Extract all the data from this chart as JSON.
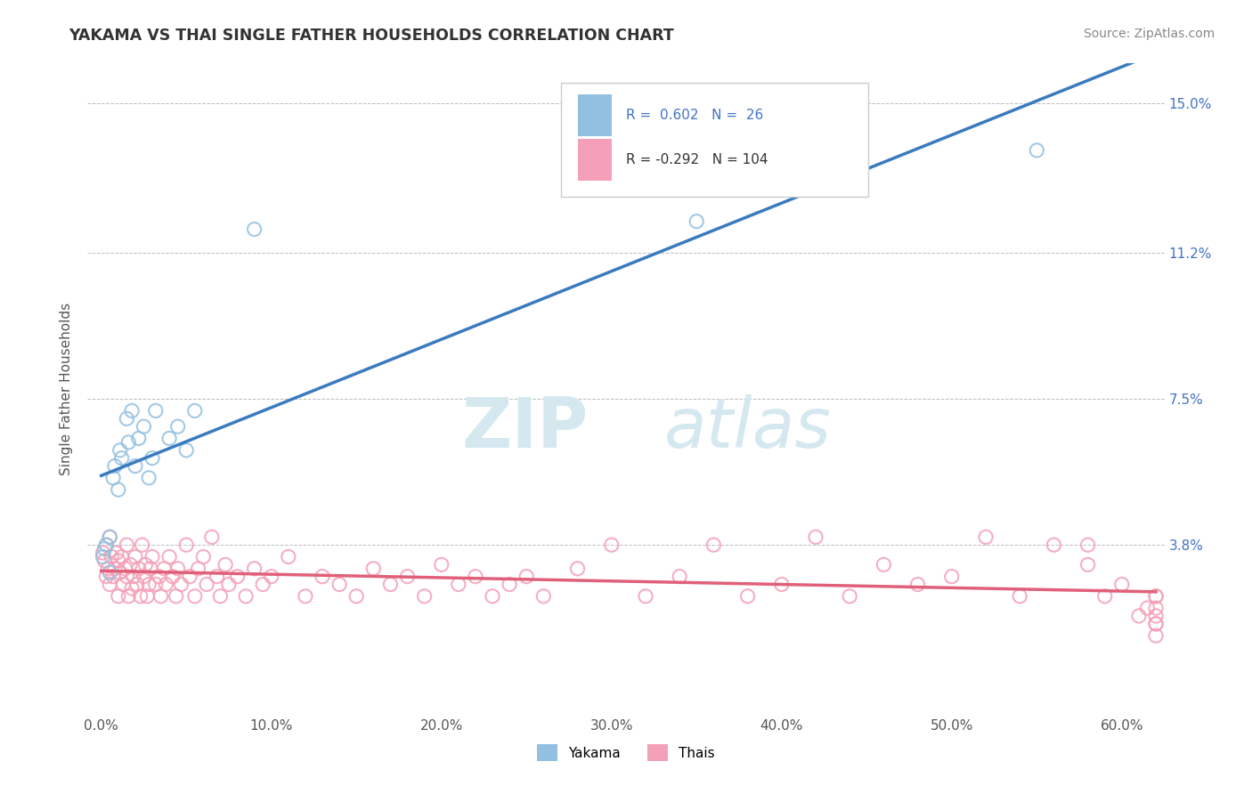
{
  "title": "YAKAMA VS THAI SINGLE FATHER HOUSEHOLDS CORRELATION CHART",
  "source": "Source: ZipAtlas.com",
  "ylabel": "Single Father Households",
  "x_tick_labels": [
    "0.0%",
    "10.0%",
    "20.0%",
    "30.0%",
    "40.0%",
    "50.0%",
    "60.0%"
  ],
  "x_tick_values": [
    0.0,
    0.1,
    0.2,
    0.3,
    0.4,
    0.5,
    0.6
  ],
  "y_tick_labels": [
    "3.8%",
    "7.5%",
    "11.2%",
    "15.0%"
  ],
  "y_tick_values": [
    0.038,
    0.075,
    0.112,
    0.15
  ],
  "xlim": [
    -0.008,
    0.625
  ],
  "ylim": [
    -0.005,
    0.16
  ],
  "bottom_legend": [
    "Yakama",
    "Thais"
  ],
  "yakama_color": "#93c0e0",
  "thais_color": "#f4a0b8",
  "yakama_line_color": "#3a7abf",
  "thais_line_color": "#e0607a",
  "watermark_zip": "ZIP",
  "watermark_atlas": "atlas",
  "watermark_color": "#d5e8f0",
  "r_yakama": 0.602,
  "n_yakama": 26,
  "r_thais": -0.292,
  "n_thais": 104,
  "legend_color_blue": "#5b9fd4",
  "legend_color_dark": "#333333",
  "yakama_x": [
    0.001,
    0.002,
    0.003,
    0.005,
    0.005,
    0.007,
    0.008,
    0.01,
    0.011,
    0.012,
    0.015,
    0.016,
    0.018,
    0.02,
    0.022,
    0.025,
    0.028,
    0.03,
    0.032,
    0.04,
    0.045,
    0.05,
    0.055,
    0.09,
    0.35,
    0.55
  ],
  "yakama_y": [
    0.035,
    0.037,
    0.038,
    0.031,
    0.04,
    0.055,
    0.058,
    0.052,
    0.062,
    0.06,
    0.07,
    0.064,
    0.072,
    0.058,
    0.065,
    0.068,
    0.055,
    0.06,
    0.072,
    0.065,
    0.068,
    0.062,
    0.072,
    0.118,
    0.12,
    0.138
  ],
  "thais_x": [
    0.001,
    0.002,
    0.003,
    0.003,
    0.004,
    0.005,
    0.005,
    0.006,
    0.007,
    0.008,
    0.009,
    0.01,
    0.01,
    0.011,
    0.012,
    0.013,
    0.014,
    0.015,
    0.015,
    0.016,
    0.017,
    0.018,
    0.019,
    0.02,
    0.021,
    0.022,
    0.023,
    0.024,
    0.025,
    0.026,
    0.027,
    0.028,
    0.029,
    0.03,
    0.032,
    0.034,
    0.035,
    0.037,
    0.038,
    0.04,
    0.042,
    0.044,
    0.045,
    0.047,
    0.05,
    0.052,
    0.055,
    0.057,
    0.06,
    0.062,
    0.065,
    0.068,
    0.07,
    0.073,
    0.075,
    0.08,
    0.085,
    0.09,
    0.095,
    0.1,
    0.11,
    0.12,
    0.13,
    0.14,
    0.15,
    0.16,
    0.17,
    0.18,
    0.19,
    0.2,
    0.21,
    0.22,
    0.23,
    0.24,
    0.25,
    0.26,
    0.28,
    0.3,
    0.32,
    0.34,
    0.36,
    0.38,
    0.4,
    0.42,
    0.44,
    0.46,
    0.48,
    0.5,
    0.52,
    0.54,
    0.56,
    0.58,
    0.58,
    0.59,
    0.6,
    0.61,
    0.615,
    0.62,
    0.62,
    0.62,
    0.62,
    0.62,
    0.62,
    0.62
  ],
  "thais_y": [
    0.036,
    0.034,
    0.03,
    0.038,
    0.032,
    0.028,
    0.04,
    0.035,
    0.03,
    0.032,
    0.036,
    0.025,
    0.034,
    0.031,
    0.035,
    0.028,
    0.032,
    0.03,
    0.038,
    0.025,
    0.033,
    0.027,
    0.03,
    0.035,
    0.028,
    0.032,
    0.025,
    0.038,
    0.03,
    0.033,
    0.025,
    0.028,
    0.032,
    0.035,
    0.028,
    0.03,
    0.025,
    0.032,
    0.028,
    0.035,
    0.03,
    0.025,
    0.032,
    0.028,
    0.038,
    0.03,
    0.025,
    0.032,
    0.035,
    0.028,
    0.04,
    0.03,
    0.025,
    0.033,
    0.028,
    0.03,
    0.025,
    0.032,
    0.028,
    0.03,
    0.035,
    0.025,
    0.03,
    0.028,
    0.025,
    0.032,
    0.028,
    0.03,
    0.025,
    0.033,
    0.028,
    0.03,
    0.025,
    0.028,
    0.03,
    0.025,
    0.032,
    0.038,
    0.025,
    0.03,
    0.038,
    0.025,
    0.028,
    0.04,
    0.025,
    0.033,
    0.028,
    0.03,
    0.04,
    0.025,
    0.038,
    0.033,
    0.038,
    0.025,
    0.028,
    0.02,
    0.022,
    0.018,
    0.025,
    0.02,
    0.015,
    0.022,
    0.018,
    0.025
  ]
}
